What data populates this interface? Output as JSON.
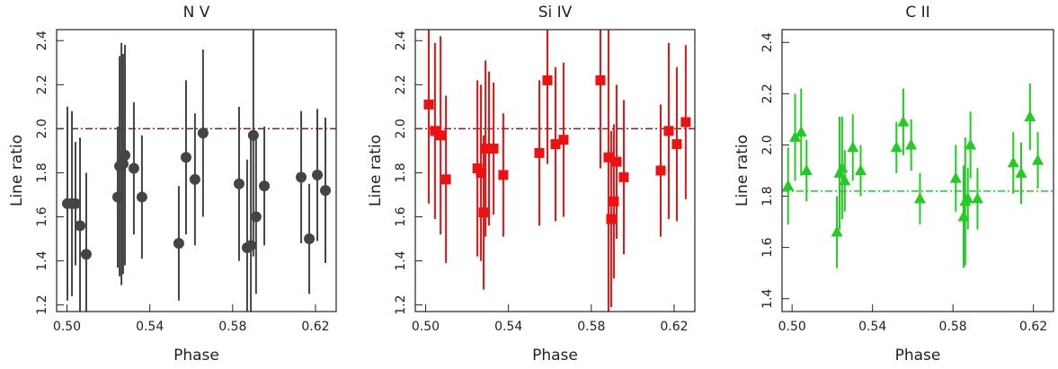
{
  "chart_data": [
    {
      "type": "scatter",
      "title": "N V",
      "xlabel": "Phase",
      "ylabel": "Line ratio",
      "xlim": [
        0.495,
        0.63
      ],
      "xticks": [
        {
          "value": 0.5,
          "label": "0.50"
        },
        0.54,
        0.58,
        0.62
      ],
      "ylim": [
        1.17,
        2.45
      ],
      "yticks": [
        1.2,
        1.4,
        1.6,
        1.8,
        {
          "value": 2,
          "label": "2.0"
        },
        2.2,
        2.4
      ],
      "reference_line": 2.0,
      "reference_color": "#8b1a1a",
      "x": [
        0.5002,
        0.5024,
        0.5041,
        0.5063,
        0.5093,
        0.5245,
        0.5254,
        0.5263,
        0.5271,
        0.528,
        0.5323,
        0.5362,
        0.554,
        0.5575,
        0.5618,
        0.5657,
        0.5831,
        0.587,
        0.5888,
        0.59,
        0.5913,
        0.5953,
        0.6131,
        0.617,
        0.6209,
        0.6248
      ],
      "series": [
        {
          "color": "#444444",
          "marker": "circle",
          "values": [
            1.66,
            1.66,
            1.66,
            1.56,
            1.43,
            1.69,
            1.83,
            1.84,
            1.84,
            1.88,
            1.82,
            1.69,
            1.48,
            1.87,
            1.77,
            1.98,
            1.75,
            1.46,
            1.47,
            1.97,
            1.6,
            1.74,
            1.78,
            1.5,
            1.79,
            1.72
          ],
          "errors": [
            0.44,
            0.42,
            0.28,
            0.4,
            0.37,
            0.32,
            0.5,
            0.55,
            0.5,
            0.5,
            0.3,
            0.28,
            0.26,
            0.35,
            0.3,
            0.38,
            0.35,
            0.4,
            0.5,
            0.55,
            0.35,
            0.27,
            0.3,
            0.25,
            0.3,
            0.33
          ]
        }
      ]
    },
    {
      "type": "scatter",
      "title": "Si IV",
      "xlabel": "Phase",
      "ylabel": "Line ratio",
      "xlim": [
        0.495,
        0.63
      ],
      "xticks": [
        {
          "value": 0.5,
          "label": "0.50"
        },
        0.54,
        0.58,
        0.62
      ],
      "ylim": [
        1.17,
        2.45
      ],
      "yticks": [
        1.2,
        1.4,
        1.6,
        1.8,
        {
          "value": 2,
          "label": "2.0"
        },
        2.2,
        2.4
      ],
      "reference_line": 2.0,
      "reference_color": "#8b1a1a",
      "x": [
        0.5015,
        0.5045,
        0.5072,
        0.5098,
        0.525,
        0.5267,
        0.528,
        0.5289,
        0.5306,
        0.5328,
        0.5375,
        0.5549,
        0.5588,
        0.5627,
        0.5666,
        0.5844,
        0.5883,
        0.5896,
        0.5909,
        0.5922,
        0.5957,
        0.6135,
        0.6174,
        0.6213,
        0.6256
      ],
      "series": [
        {
          "color": "#ee1111",
          "marker": "square",
          "values": [
            2.11,
            1.99,
            1.97,
            1.77,
            1.82,
            1.8,
            1.62,
            1.91,
            1.91,
            1.91,
            1.79,
            1.89,
            2.22,
            1.93,
            1.95,
            2.22,
            1.87,
            1.59,
            1.67,
            1.85,
            1.78,
            1.81,
            1.99,
            1.93,
            2.03
          ],
          "errors": [
            0.45,
            0.4,
            0.45,
            0.38,
            0.4,
            0.4,
            0.35,
            0.4,
            0.35,
            0.3,
            0.28,
            0.33,
            0.38,
            0.35,
            0.35,
            0.4,
            0.7,
            0.4,
            0.35,
            0.35,
            0.35,
            0.3,
            0.4,
            0.35,
            0.35
          ]
        }
      ]
    },
    {
      "type": "scatter",
      "title": "C II",
      "xlabel": "Phase",
      "ylabel": "Line ratio",
      "xlim": [
        0.495,
        0.63
      ],
      "xticks": [
        {
          "value": 0.5,
          "label": "0.50"
        },
        0.54,
        0.58,
        0.62
      ],
      "ylim": [
        1.35,
        2.45
      ],
      "yticks": [
        1.4,
        1.6,
        1.8,
        {
          "value": 2,
          "label": "2.0"
        },
        2.2,
        2.4
      ],
      "reference_line": 1.82,
      "reference_color": "#22cc22",
      "x": [
        0.498,
        0.5015,
        0.5045,
        0.5072,
        0.5223,
        0.5236,
        0.5249,
        0.5262,
        0.5302,
        0.5341,
        0.5519,
        0.5553,
        0.5592,
        0.5636,
        0.5814,
        0.5853,
        0.5861,
        0.5874,
        0.5887,
        0.5922,
        0.61,
        0.6139,
        0.6183,
        0.6222
      ],
      "series": [
        {
          "color": "#22cc22",
          "marker": "triangle",
          "values": [
            1.84,
            2.03,
            2.05,
            1.9,
            1.66,
            1.89,
            1.91,
            1.86,
            1.99,
            1.9,
            1.99,
            2.09,
            2.0,
            1.79,
            1.87,
            1.72,
            1.78,
            1.79,
            2.0,
            1.79,
            1.93,
            1.89,
            2.11,
            1.94
          ],
          "errors": [
            0.15,
            0.17,
            0.17,
            0.12,
            0.14,
            0.22,
            0.2,
            0.12,
            0.13,
            0.1,
            0.1,
            0.13,
            0.1,
            0.1,
            0.13,
            0.2,
            0.25,
            0.12,
            0.13,
            0.12,
            0.12,
            0.12,
            0.13,
            0.11
          ]
        }
      ]
    }
  ]
}
